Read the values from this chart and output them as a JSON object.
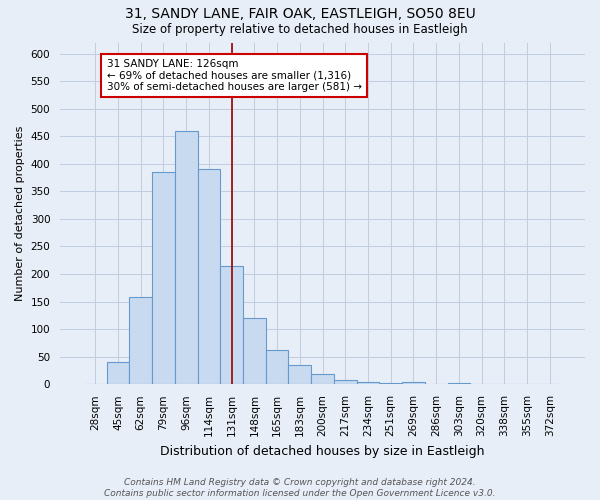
{
  "title": "31, SANDY LANE, FAIR OAK, EASTLEIGH, SO50 8EU",
  "subtitle": "Size of property relative to detached houses in Eastleigh",
  "xlabel": "Distribution of detached houses by size in Eastleigh",
  "ylabel": "Number of detached properties",
  "bar_labels": [
    "28sqm",
    "45sqm",
    "62sqm",
    "79sqm",
    "96sqm",
    "114sqm",
    "131sqm",
    "148sqm",
    "165sqm",
    "183sqm",
    "200sqm",
    "217sqm",
    "234sqm",
    "251sqm",
    "269sqm",
    "286sqm",
    "303sqm",
    "320sqm",
    "338sqm",
    "355sqm",
    "372sqm"
  ],
  "bar_heights": [
    0,
    40,
    158,
    385,
    460,
    390,
    215,
    120,
    62,
    35,
    18,
    8,
    5,
    2,
    5,
    0,
    2,
    0,
    0,
    0,
    0
  ],
  "bar_color": "#c8daf0",
  "bar_edge_color": "#6699cc",
  "vline_color": "#990000",
  "annotation_text": "31 SANDY LANE: 126sqm\n← 69% of detached houses are smaller (1,316)\n30% of semi-detached houses are larger (581) →",
  "ylim": [
    0,
    620
  ],
  "yticks": [
    0,
    50,
    100,
    150,
    200,
    250,
    300,
    350,
    400,
    450,
    500,
    550,
    600
  ],
  "footnote": "Contains HM Land Registry data © Crown copyright and database right 2024.\nContains public sector information licensed under the Open Government Licence v3.0.",
  "background_color": "#e8eef8",
  "plot_bg_color": "#e8eef8",
  "grid_color": "#c0cce0",
  "title_fontsize": 10,
  "subtitle_fontsize": 8.5,
  "xlabel_fontsize": 9,
  "ylabel_fontsize": 8,
  "tick_fontsize": 7.5,
  "annot_fontsize": 7.5,
  "footnote_fontsize": 6.5
}
